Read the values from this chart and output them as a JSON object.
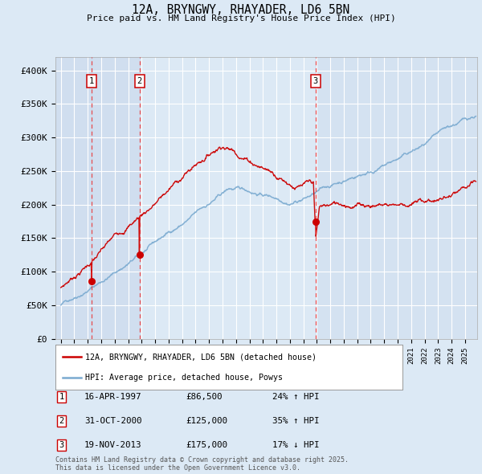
{
  "title": "12A, BRYNGWY, RHAYADER, LD6 5BN",
  "subtitle": "Price paid vs. HM Land Registry's House Price Index (HPI)",
  "background_color": "#dce9f5",
  "plot_bg_color": "#dce9f5",
  "ylim": [
    0,
    420000
  ],
  "yticks": [
    0,
    50000,
    100000,
    150000,
    200000,
    250000,
    300000,
    350000,
    400000
  ],
  "ytick_labels": [
    "£0",
    "£50K",
    "£100K",
    "£150K",
    "£200K",
    "£250K",
    "£300K",
    "£350K",
    "£400K"
  ],
  "xlim_left": 1994.6,
  "xlim_right": 2025.9,
  "transactions": [
    {
      "label": "1",
      "date_num": 1997.29,
      "price": 86500,
      "pct": "24%",
      "dir": "↑",
      "date_str": "16-APR-1997"
    },
    {
      "label": "2",
      "date_num": 2000.84,
      "price": 125000,
      "pct": "35%",
      "dir": "↑",
      "date_str": "31-OCT-2000"
    },
    {
      "label": "3",
      "date_num": 2013.89,
      "price": 175000,
      "pct": "17%",
      "dir": "↓",
      "date_str": "19-NOV-2013"
    }
  ],
  "legend_entries": [
    "12A, BRYNGWY, RHAYADER, LD6 5BN (detached house)",
    "HPI: Average price, detached house, Powys"
  ],
  "footnote": "Contains HM Land Registry data © Crown copyright and database right 2025.\nThis data is licensed under the Open Government Licence v3.0.",
  "red_line_color": "#cc0000",
  "blue_line_color": "#7aaad0",
  "vline_color": "#ee3333",
  "box_edge_color": "#cc0000",
  "shade_color": "#c8d8ec"
}
